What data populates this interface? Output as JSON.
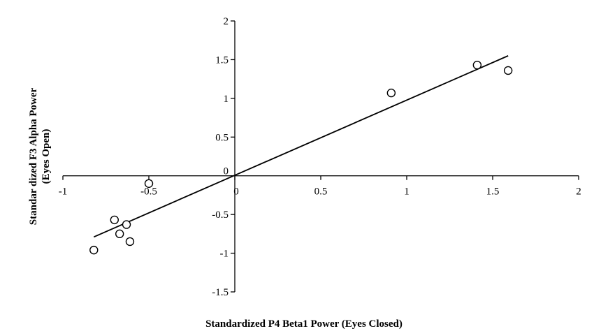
{
  "chart_data": {
    "type": "scatter",
    "xlabel": "Standardized P4 Beta1 Power (Eyes Closed)",
    "ylabel_lines": [
      "Standar dized F3 Alpha Power",
      "(Eyes Open)"
    ],
    "xlim": [
      -1,
      2
    ],
    "ylim": [
      -1.5,
      2
    ],
    "xticks": [
      "-1",
      "-0.5",
      "0",
      "0.5",
      "1",
      "1.5",
      "2"
    ],
    "yticks": [
      "-1.5",
      "-1",
      "-0.5",
      "0",
      "0.5",
      "1",
      "1.5",
      "2"
    ],
    "grid": false,
    "series": [
      {
        "points": [
          {
            "x": -0.82,
            "y": -0.96
          },
          {
            "x": -0.7,
            "y": -0.57
          },
          {
            "x": -0.67,
            "y": -0.75
          },
          {
            "x": -0.63,
            "y": -0.63
          },
          {
            "x": -0.61,
            "y": -0.85
          },
          {
            "x": -0.5,
            "y": -0.1
          },
          {
            "x": 0.91,
            "y": 1.07
          },
          {
            "x": 1.41,
            "y": 1.43
          },
          {
            "x": 1.59,
            "y": 1.36
          }
        ]
      }
    ],
    "trendline": {
      "x1": -0.82,
      "y1": -0.79,
      "x2": 1.59,
      "y2": 1.55
    }
  }
}
